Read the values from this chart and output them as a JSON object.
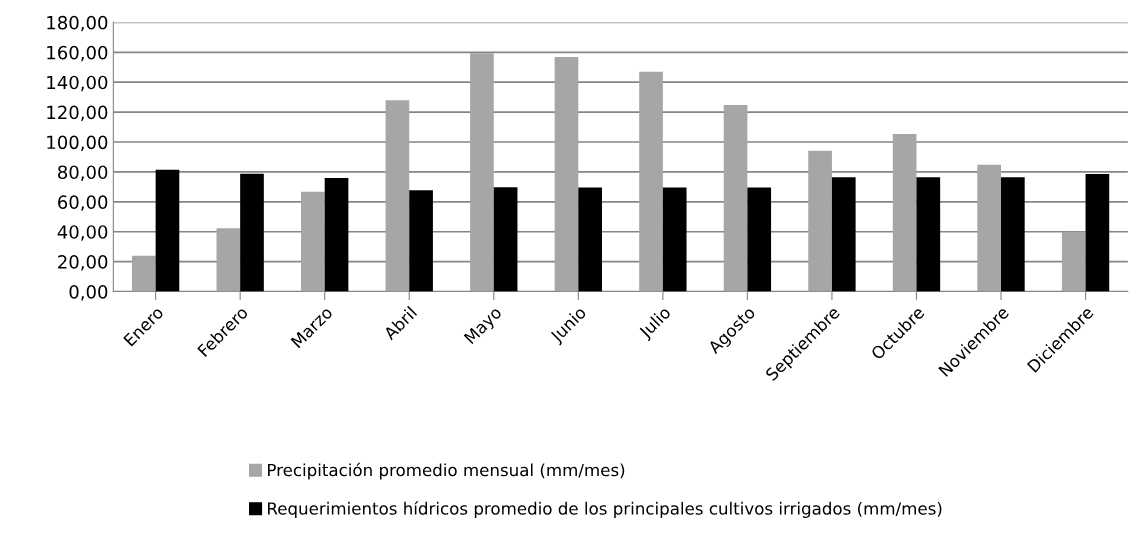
{
  "chart_data": {
    "type": "bar",
    "categories": [
      "Enero",
      "Febrero",
      "Marzo",
      "Abril",
      "Mayo",
      "Junio",
      "Julio",
      "Agosto",
      "Septiembre",
      "Octubre",
      "Noviembre",
      "Diciembre"
    ],
    "series": [
      {
        "name": "Precipitación promedio mensual (mm/mes)",
        "color": "#a6a6a6",
        "values": [
          24,
          42.4,
          66.7,
          127.9,
          159.3,
          156.9,
          147,
          124.8,
          94.2,
          105.3,
          84.8,
          40
        ]
      },
      {
        "name": "Requerimientos hídricos promedio de los principales cultivos irrigados (mm/mes)",
        "color": "#000000",
        "values": [
          81.4,
          78.8,
          75.9,
          67.7,
          69.8,
          69.6,
          69.6,
          69.6,
          76.4,
          76.4,
          76.4,
          78.6
        ]
      }
    ],
    "ylim": [
      0,
      180
    ],
    "yticks": [
      {
        "value": 0,
        "label": "0,00"
      },
      {
        "value": 20,
        "label": "20,00"
      },
      {
        "value": 40,
        "label": "40,00"
      },
      {
        "value": 60,
        "label": "60,00"
      },
      {
        "value": 80,
        "label": "80,00"
      },
      {
        "value": 100,
        "label": "100,00"
      },
      {
        "value": 120,
        "label": "120,00"
      },
      {
        "value": 140,
        "label": "140,00"
      },
      {
        "value": 160,
        "label": "160,00"
      },
      {
        "value": 180,
        "label": "180,00"
      }
    ],
    "grid": "y",
    "legend": "bottom"
  }
}
